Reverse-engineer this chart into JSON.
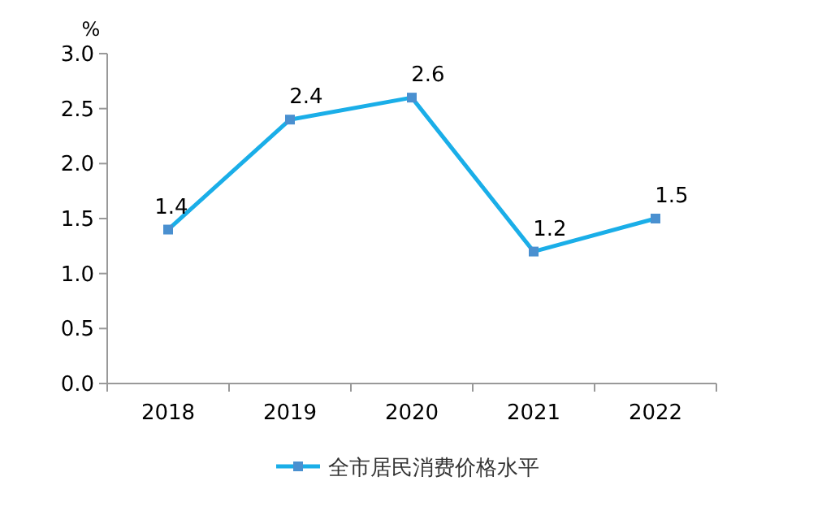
{
  "chart_data": {
    "type": "line",
    "ylabel": "%",
    "categories": [
      "2018",
      "2019",
      "2020",
      "2021",
      "2022"
    ],
    "series": [
      {
        "name": "全市居民消费价格水平",
        "color": "#1aaee8",
        "values": [
          1.4,
          2.4,
          2.6,
          1.2,
          1.5
        ]
      }
    ],
    "ylim": [
      0,
      3
    ],
    "yticks": [
      {
        "value": 0,
        "label": "0.0"
      },
      {
        "value": 0.5,
        "label": "0.5"
      },
      {
        "value": 1,
        "label": "1.0"
      },
      {
        "value": 1.5,
        "label": "1.5"
      },
      {
        "value": 2,
        "label": "2.0"
      },
      {
        "value": 2.5,
        "label": "2.5"
      },
      {
        "value": 3,
        "label": "3.0"
      }
    ],
    "marker": "square",
    "data_labels": true,
    "legend": "bottom",
    "grid": false
  }
}
